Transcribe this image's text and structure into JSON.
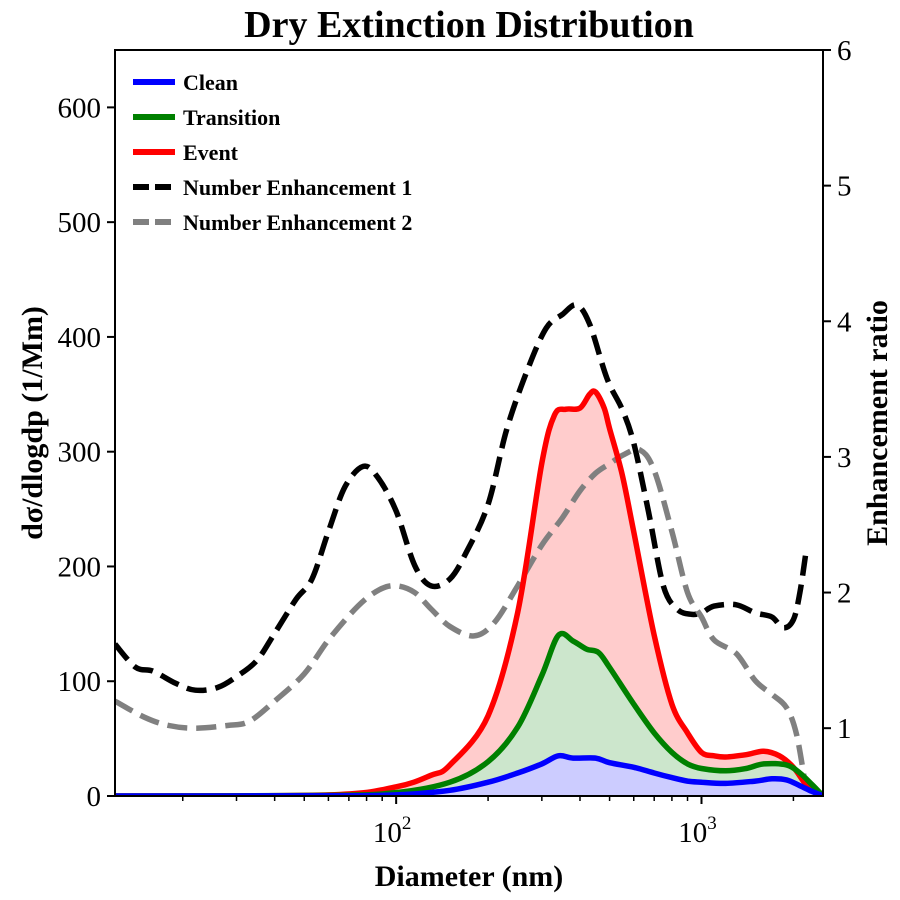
{
  "chart_data": {
    "type": "area",
    "title": "Dry Extinction Distribution",
    "xlabel": "Diameter (nm)",
    "ylabel": "dσ/dlogdp (1/Mm)",
    "y2label": "Enhancement ratio",
    "x_scale": "log",
    "xlim": [
      12,
      2500
    ],
    "ylim": [
      0,
      650
    ],
    "y2lim": [
      0.5,
      6
    ],
    "x_ticks": [
      {
        "value": 100,
        "base": "10",
        "exp": "2"
      },
      {
        "value": 1000,
        "base": "10",
        "exp": "3"
      }
    ],
    "y_ticks": [
      "0",
      "100",
      "200",
      "300",
      "400",
      "500",
      "600"
    ],
    "y2_ticks": [
      "1",
      "2",
      "3",
      "4",
      "5",
      "6"
    ],
    "legend_position": "upper-left",
    "grid": false,
    "series": [
      {
        "name": "Clean",
        "axis": "left",
        "color": "#0000ff",
        "fill": "#ccccff",
        "style": "solid",
        "points": [
          [
            12,
            0
          ],
          [
            60,
            0.2
          ],
          [
            100,
            1
          ],
          [
            150,
            5
          ],
          [
            200,
            12
          ],
          [
            250,
            20
          ],
          [
            300,
            28
          ],
          [
            340,
            35
          ],
          [
            380,
            33
          ],
          [
            450,
            33
          ],
          [
            500,
            29
          ],
          [
            600,
            25
          ],
          [
            700,
            20
          ],
          [
            800,
            16
          ],
          [
            900,
            13
          ],
          [
            1000,
            12
          ],
          [
            1200,
            11
          ],
          [
            1500,
            13
          ],
          [
            1700,
            15
          ],
          [
            1900,
            14
          ],
          [
            2100,
            9
          ],
          [
            2300,
            4
          ],
          [
            2500,
            0
          ]
        ]
      },
      {
        "name": "Transition",
        "axis": "left",
        "color": "#008000",
        "fill": "#cce6cc",
        "style": "solid",
        "points": [
          [
            12,
            0
          ],
          [
            60,
            0.5
          ],
          [
            100,
            3
          ],
          [
            150,
            12
          ],
          [
            200,
            30
          ],
          [
            250,
            60
          ],
          [
            300,
            105
          ],
          [
            340,
            140
          ],
          [
            380,
            135
          ],
          [
            420,
            128
          ],
          [
            460,
            125
          ],
          [
            500,
            112
          ],
          [
            600,
            80
          ],
          [
            700,
            55
          ],
          [
            800,
            38
          ],
          [
            900,
            28
          ],
          [
            1000,
            24
          ],
          [
            1200,
            22
          ],
          [
            1400,
            24
          ],
          [
            1600,
            28
          ],
          [
            1900,
            27
          ],
          [
            2100,
            20
          ],
          [
            2300,
            10
          ],
          [
            2500,
            0
          ]
        ]
      },
      {
        "name": "Event",
        "axis": "left",
        "color": "#ff0000",
        "fill": "#ffcccc",
        "style": "solid",
        "points": [
          [
            12,
            0
          ],
          [
            60,
            1
          ],
          [
            100,
            8
          ],
          [
            130,
            18
          ],
          [
            150,
            27
          ],
          [
            200,
            70
          ],
          [
            250,
            160
          ],
          [
            300,
            290
          ],
          [
            330,
            332
          ],
          [
            360,
            337
          ],
          [
            400,
            338
          ],
          [
            430,
            350
          ],
          [
            450,
            352
          ],
          [
            480,
            338
          ],
          [
            500,
            320
          ],
          [
            550,
            280
          ],
          [
            600,
            230
          ],
          [
            700,
            140
          ],
          [
            800,
            80
          ],
          [
            900,
            55
          ],
          [
            1000,
            38
          ],
          [
            1100,
            35
          ],
          [
            1200,
            34
          ],
          [
            1400,
            36
          ],
          [
            1600,
            39
          ],
          [
            1800,
            35
          ],
          [
            2000,
            25
          ],
          [
            2200,
            10
          ],
          [
            2400,
            2
          ],
          [
            2500,
            0
          ]
        ]
      },
      {
        "name": "Number Enhancement 1",
        "axis": "right",
        "color": "#000000",
        "style": "dashed",
        "points": [
          [
            12,
            1.62
          ],
          [
            14,
            1.45
          ],
          [
            16,
            1.42
          ],
          [
            19,
            1.33
          ],
          [
            22,
            1.28
          ],
          [
            26,
            1.3
          ],
          [
            30,
            1.38
          ],
          [
            35,
            1.5
          ],
          [
            40,
            1.7
          ],
          [
            47,
            1.95
          ],
          [
            53,
            2.1
          ],
          [
            60,
            2.45
          ],
          [
            68,
            2.78
          ],
          [
            78,
            2.93
          ],
          [
            87,
            2.85
          ],
          [
            100,
            2.6
          ],
          [
            115,
            2.2
          ],
          [
            130,
            2.05
          ],
          [
            150,
            2.1
          ],
          [
            170,
            2.3
          ],
          [
            200,
            2.65
          ],
          [
            230,
            3.2
          ],
          [
            270,
            3.65
          ],
          [
            310,
            3.95
          ],
          [
            350,
            4.05
          ],
          [
            390,
            4.12
          ],
          [
            430,
            3.98
          ],
          [
            490,
            3.58
          ],
          [
            550,
            3.35
          ],
          [
            600,
            3.1
          ],
          [
            670,
            2.6
          ],
          [
            750,
            2.05
          ],
          [
            830,
            1.88
          ],
          [
            920,
            1.84
          ],
          [
            1000,
            1.85
          ],
          [
            1100,
            1.9
          ],
          [
            1300,
            1.91
          ],
          [
            1500,
            1.85
          ],
          [
            1700,
            1.82
          ],
          [
            1850,
            1.74
          ],
          [
            2000,
            1.8
          ],
          [
            2100,
            2.0
          ],
          [
            2200,
            2.3
          ]
        ]
      },
      {
        "name": "Number Enhancement 2",
        "axis": "right",
        "color": "#808080",
        "style": "dashed",
        "points": [
          [
            12,
            1.2
          ],
          [
            15,
            1.08
          ],
          [
            18,
            1.02
          ],
          [
            22,
            1.0
          ],
          [
            28,
            1.02
          ],
          [
            33,
            1.05
          ],
          [
            40,
            1.2
          ],
          [
            50,
            1.4
          ],
          [
            60,
            1.65
          ],
          [
            75,
            1.9
          ],
          [
            88,
            2.02
          ],
          [
            100,
            2.05
          ],
          [
            115,
            2.0
          ],
          [
            130,
            1.88
          ],
          [
            150,
            1.75
          ],
          [
            180,
            1.68
          ],
          [
            210,
            1.78
          ],
          [
            250,
            2.05
          ],
          [
            300,
            2.35
          ],
          [
            350,
            2.55
          ],
          [
            400,
            2.75
          ],
          [
            450,
            2.88
          ],
          [
            500,
            2.95
          ],
          [
            560,
            3.02
          ],
          [
            630,
            3.05
          ],
          [
            700,
            2.9
          ],
          [
            800,
            2.45
          ],
          [
            900,
            2.0
          ],
          [
            1000,
            1.82
          ],
          [
            1100,
            1.65
          ],
          [
            1300,
            1.55
          ],
          [
            1500,
            1.35
          ],
          [
            1700,
            1.25
          ],
          [
            1900,
            1.15
          ],
          [
            2050,
            0.95
          ],
          [
            2200,
            0.55
          ]
        ]
      }
    ]
  }
}
